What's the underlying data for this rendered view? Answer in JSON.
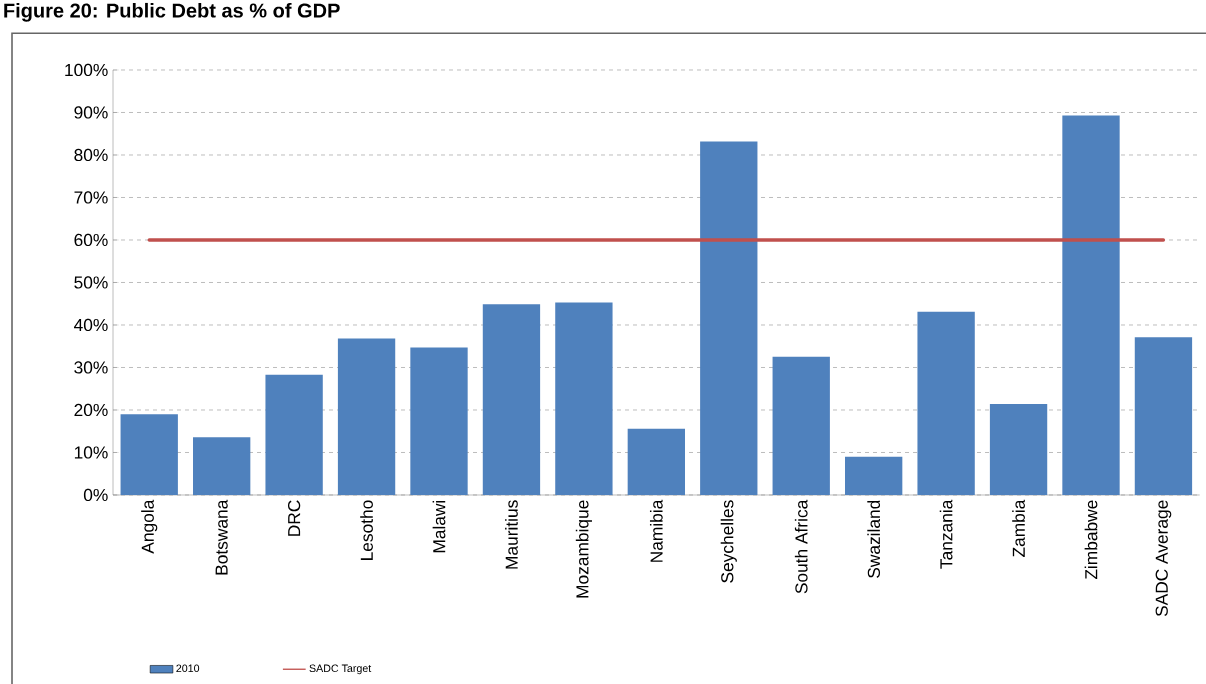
{
  "chart_data": {
    "type": "bar",
    "title": "Figure 20: Public Debt as % of GDP",
    "categories": [
      "Angola",
      "Botswana",
      "DRC",
      "Lesotho",
      "Malawi",
      "Mauritius",
      "Mozambique",
      "Namibia",
      "Seychelles",
      "South Africa",
      "Swaziland",
      "Tanzania",
      "Zambia",
      "Zimbabwe",
      "SADC Average"
    ],
    "series": [
      {
        "name": "2010",
        "color": "#4f81bd",
        "values": [
          19.0,
          13.6,
          28.3,
          36.8,
          34.7,
          44.9,
          45.3,
          15.6,
          83.2,
          32.5,
          9.0,
          43.1,
          21.4,
          89.3,
          37.1
        ]
      },
      {
        "name": "SADC Target",
        "type": "line",
        "color": "#c0504d",
        "values": [
          60,
          60,
          60,
          60,
          60,
          60,
          60,
          60,
          60,
          60,
          60,
          60,
          60,
          60,
          60
        ]
      }
    ],
    "ylim": [
      0,
      100
    ],
    "yticks": [
      {
        "value": 0,
        "label": "0%"
      },
      {
        "value": 10,
        "label": "10%"
      },
      {
        "value": 20,
        "label": "20%"
      },
      {
        "value": 30,
        "label": "30%"
      },
      {
        "value": 40,
        "label": "40%"
      },
      {
        "value": 50,
        "label": "50%"
      },
      {
        "value": 60,
        "label": "60%"
      },
      {
        "value": 70,
        "label": "70%"
      },
      {
        "value": 80,
        "label": "80%"
      },
      {
        "value": 90,
        "label": "90%"
      },
      {
        "value": 100,
        "label": "100%"
      }
    ],
    "grid": "y",
    "legend": "bottom",
    "marker": "none",
    "line_style": "solid"
  }
}
